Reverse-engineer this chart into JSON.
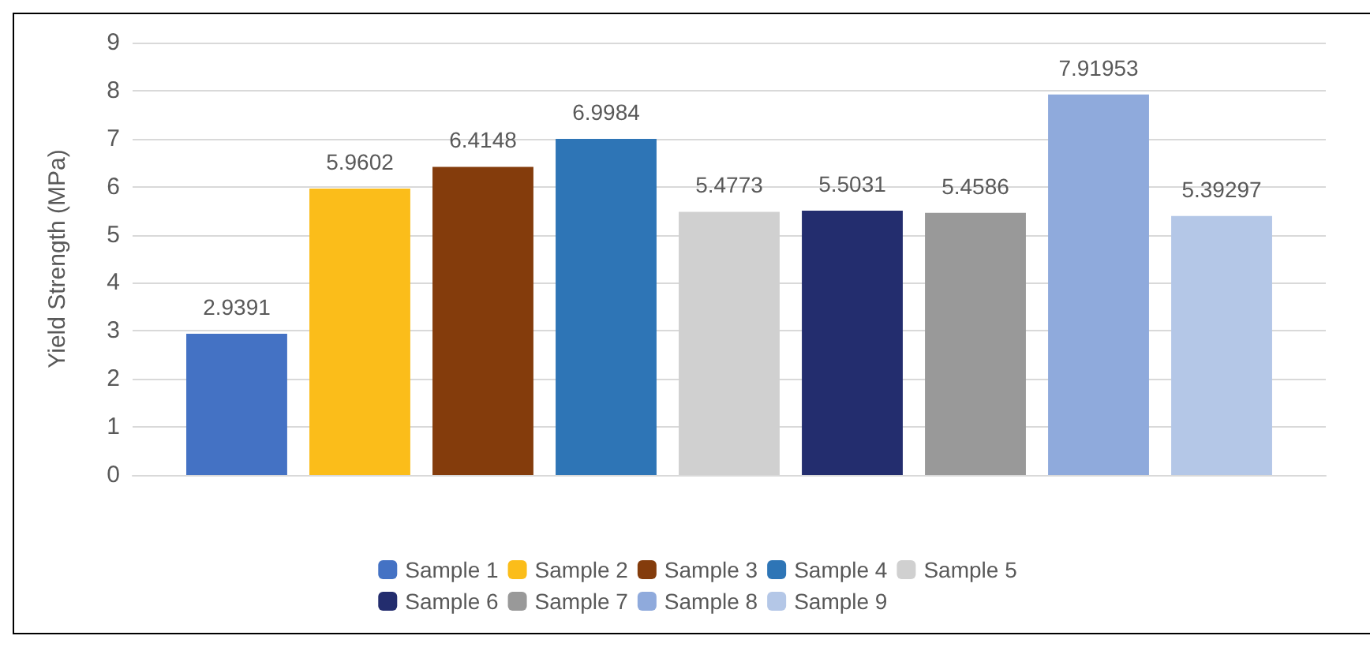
{
  "chart_data": {
    "type": "bar",
    "ylabel": "Yield Strength (MPa)",
    "categories": [
      null
    ],
    "series": [
      {
        "name": "Sample 1",
        "color": "#4472c4",
        "values": [
          2.9391
        ]
      },
      {
        "name": "Sample 2",
        "color": "#fbbd1a",
        "values": [
          5.9602
        ]
      },
      {
        "name": "Sample 3",
        "color": "#843c0c",
        "values": [
          6.4148
        ]
      },
      {
        "name": "Sample 4",
        "color": "#2e75b6",
        "values": [
          6.9984
        ]
      },
      {
        "name": "Sample 5",
        "color": "#d0d0d0",
        "values": [
          5.4773
        ]
      },
      {
        "name": "Sample 6",
        "color": "#232d6e",
        "values": [
          5.5031
        ]
      },
      {
        "name": "Sample 7",
        "color": "#999999",
        "values": [
          5.4586
        ]
      },
      {
        "name": "Sample 8",
        "color": "#8faadc",
        "values": [
          7.91953
        ]
      },
      {
        "name": "Sample 9",
        "color": "#b4c7e7",
        "values": [
          5.39297
        ]
      }
    ],
    "ylim": [
      0,
      9
    ],
    "yticks": [
      0,
      1,
      2,
      3,
      4,
      5,
      6,
      7,
      8,
      9
    ],
    "grid": "y",
    "legend": "bottom",
    "data_labels": true
  }
}
